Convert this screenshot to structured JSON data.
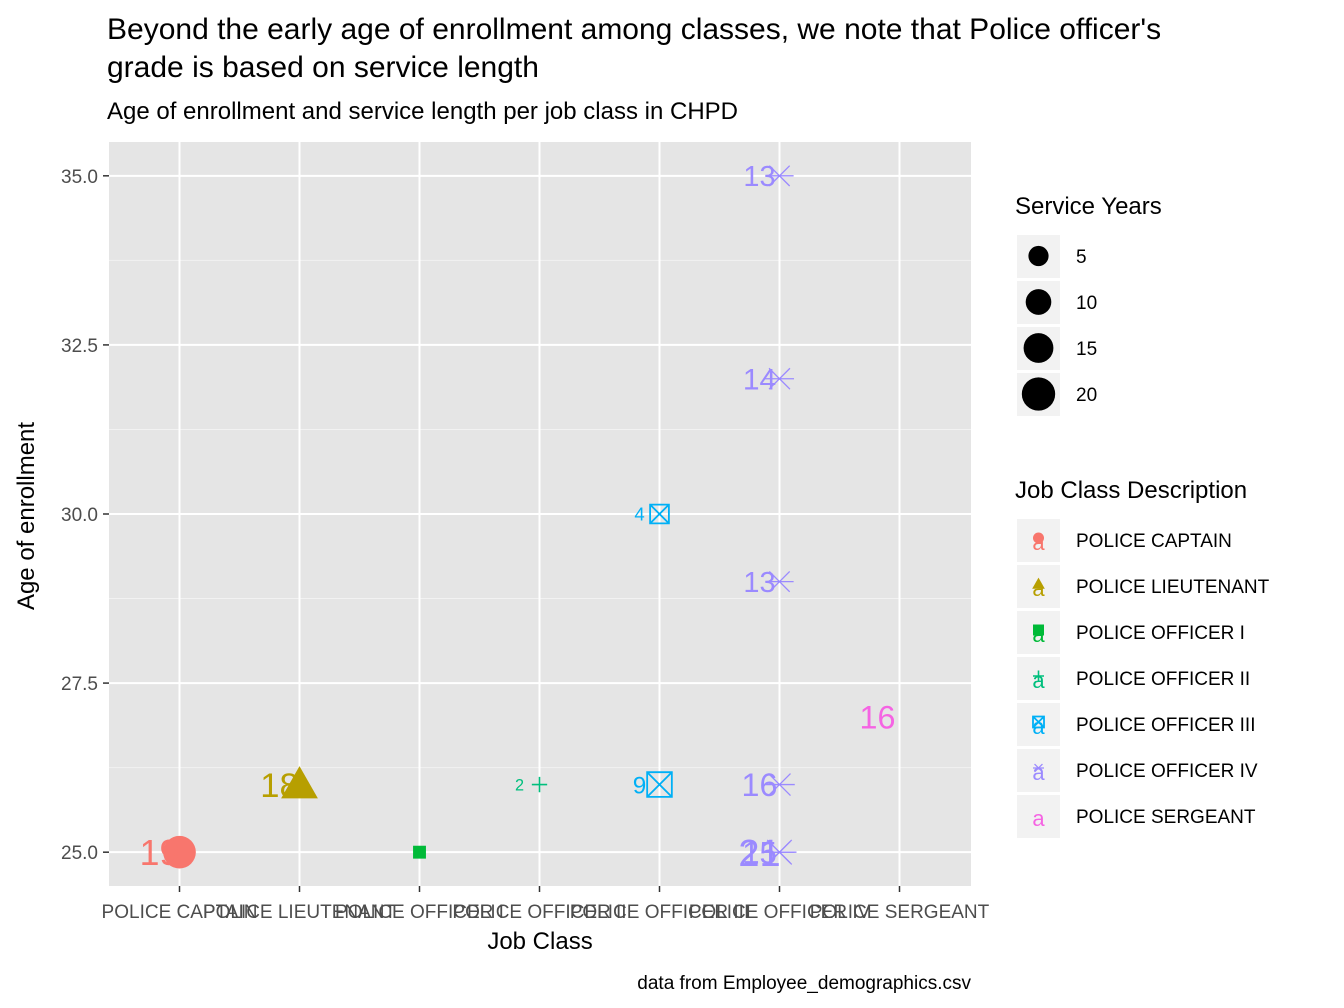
{
  "chart_data": {
    "type": "scatter",
    "title": "Beyond the early age of enrollment among classes, we note that Police officer's grade is based on service length",
    "title_lines": [
      "Beyond the early age of enrollment among classes, we note that Police officer's",
      "grade is based on service length"
    ],
    "subtitle": "Age of enrollment and service length per job class in CHPD",
    "caption": "data from Employee_demographics.csv",
    "xlabel": "Job Class",
    "ylabel": "Age of enrollment",
    "categories": [
      "POLICE CAPTAIN",
      "POLICE LIEUTENANT",
      "POLICE OFFICER I",
      "POLICE OFFICER II",
      "POLICE OFFICER III",
      "POLICE OFFICER IV",
      "POLICE SERGEANT"
    ],
    "ylim": [
      24.5,
      35.5
    ],
    "yticks": [
      "25.0",
      "27.5",
      "30.0",
      "32.5",
      "35.0"
    ],
    "grid": true,
    "background": "#e5e5e5",
    "legend_position": "right",
    "points": [
      {
        "class": "POLICE CAPTAIN",
        "age": 25,
        "service_years": 19,
        "label": "19"
      },
      {
        "class": "POLICE LIEUTENANT",
        "age": 26,
        "service_years": 18,
        "label": "18"
      },
      {
        "class": "POLICE OFFICER I",
        "age": 25,
        "service_years": 1,
        "label": ""
      },
      {
        "class": "POLICE OFFICER II",
        "age": 26,
        "service_years": 2,
        "label": "2"
      },
      {
        "class": "POLICE OFFICER III",
        "age": 30,
        "service_years": 4,
        "label": "4"
      },
      {
        "class": "POLICE OFFICER III",
        "age": 26,
        "service_years": 9,
        "label": "9"
      },
      {
        "class": "POLICE OFFICER IV",
        "age": 35,
        "service_years": 13,
        "label": "13"
      },
      {
        "class": "POLICE OFFICER IV",
        "age": 32,
        "service_years": 14,
        "label": "14"
      },
      {
        "class": "POLICE OFFICER IV",
        "age": 29,
        "service_years": 13,
        "label": "13"
      },
      {
        "class": "POLICE OFFICER IV",
        "age": 26,
        "service_years": 16,
        "label": "16"
      },
      {
        "class": "POLICE OFFICER IV",
        "age": 25,
        "service_years": 21,
        "label": "21"
      },
      {
        "class": "POLICE OFFICER IV",
        "age": 25,
        "service_years": 15,
        "label": "15"
      },
      {
        "class": "POLICE SERGEANT",
        "age": 27,
        "service_years": 16,
        "label": "16"
      }
    ],
    "size_legend": {
      "title": "Service Years",
      "entries": [
        {
          "value": 5,
          "label": "5"
        },
        {
          "value": 10,
          "label": "10"
        },
        {
          "value": 15,
          "label": "15"
        },
        {
          "value": 20,
          "label": "20"
        }
      ]
    },
    "class_legend": {
      "title": "Job Class Description",
      "key_glyph": "a",
      "entries": [
        {
          "label": "POLICE CAPTAIN",
          "color": "#F8766D",
          "shape": "circle"
        },
        {
          "label": "POLICE LIEUTENANT",
          "color": "#B79F00",
          "shape": "triangle"
        },
        {
          "label": "POLICE OFFICER I",
          "color": "#00BA38",
          "shape": "square"
        },
        {
          "label": "POLICE OFFICER II",
          "color": "#00BF7D",
          "shape": "plus"
        },
        {
          "label": "POLICE OFFICER III",
          "color": "#00B0F6",
          "shape": "boxx"
        },
        {
          "label": "POLICE OFFICER IV",
          "color": "#9B8AFF",
          "shape": "asterisk"
        },
        {
          "label": "POLICE SERGEANT",
          "color": "#F564E3",
          "shape": "none"
        }
      ]
    }
  }
}
